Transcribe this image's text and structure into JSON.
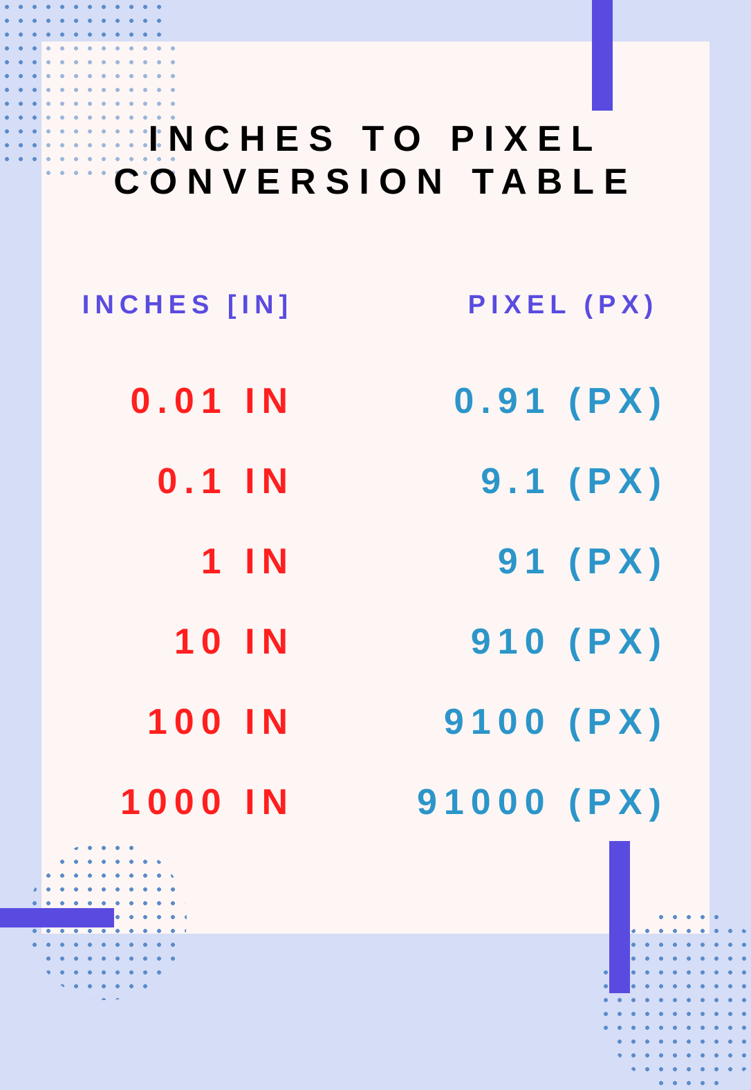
{
  "infographic": {
    "type": "table",
    "title_line1": "INCHES TO PIXEL",
    "title_line2": "CONVERSION TABLE",
    "background_color": "#d5ddf7",
    "card_color": "#fdf6f4",
    "accent_bar_color": "#5a4be0",
    "dot_color": "#5b8bc9",
    "title_color": "#000000",
    "title_fontsize": 52,
    "title_letter_spacing": 14,
    "columns": [
      {
        "key": "inches",
        "label": "INCHES [IN]",
        "color": "#5a4be0",
        "align": "right",
        "fontsize": 38
      },
      {
        "key": "pixel",
        "label": "PIXEL (PX)",
        "color": "#5a4be0",
        "align": "right",
        "fontsize": 38
      }
    ],
    "row_fontsize": 52,
    "row_letter_spacing": 10,
    "row_gap": 56,
    "inches_color": "#ff1f1f",
    "pixel_color": "#2c95c9",
    "rows": [
      {
        "inches": "0.01 IN",
        "pixel": "0.91 (PX)"
      },
      {
        "inches": "0.1 IN",
        "pixel": "9.1  (PX)"
      },
      {
        "inches": "1 IN",
        "pixel": "91 (PX)"
      },
      {
        "inches": "10 IN",
        "pixel": "910 (PX)"
      },
      {
        "inches": "100 IN",
        "pixel": "9100 (PX)"
      },
      {
        "inches": "1000 IN",
        "pixel": "91000 (PX)"
      }
    ]
  }
}
